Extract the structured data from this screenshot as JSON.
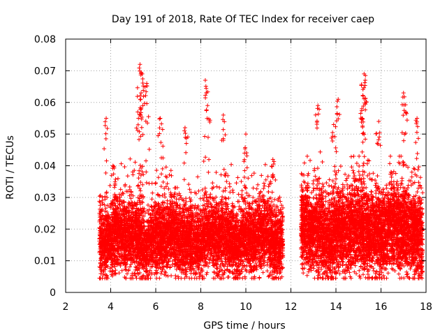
{
  "chart_data": {
    "type": "scatter",
    "title": "Day 191 of 2018, Rate Of TEC Index for receiver caep",
    "xlabel": "GPS time / hours",
    "ylabel": "ROTI / TECUs",
    "xlim": [
      2,
      18
    ],
    "ylim": [
      0,
      0.08
    ],
    "xticks": [
      "2",
      "4",
      "6",
      "8",
      "10",
      "12",
      "14",
      "16",
      "18"
    ],
    "yticks": [
      "0",
      "0.01",
      "0.02",
      "0.03",
      "0.04",
      "0.05",
      "0.06",
      "0.07",
      "0.08"
    ],
    "grid": true,
    "marker": "+",
    "series": [
      {
        "name": "ROTI",
        "color": "#ff0000",
        "segments": [
          {
            "x_range": [
              3.5,
              11.65
            ],
            "baseline": 0.017,
            "spread": 0.0055,
            "points_per_hour": 800,
            "peaks": [
              {
                "x": 3.8,
                "y": 0.055
              },
              {
                "x": 4.1,
                "y": 0.04
              },
              {
                "x": 5.3,
                "y": 0.072
              },
              {
                "x": 5.4,
                "y": 0.069
              },
              {
                "x": 5.6,
                "y": 0.066
              },
              {
                "x": 5.35,
                "y": 0.063
              },
              {
                "x": 5.2,
                "y": 0.057
              },
              {
                "x": 6.2,
                "y": 0.055
              },
              {
                "x": 7.3,
                "y": 0.052
              },
              {
                "x": 8.2,
                "y": 0.067
              },
              {
                "x": 8.3,
                "y": 0.059
              },
              {
                "x": 9.0,
                "y": 0.056
              },
              {
                "x": 10.0,
                "y": 0.05
              },
              {
                "x": 11.2,
                "y": 0.042
              }
            ]
          },
          {
            "x_range": [
              12.45,
              17.85
            ],
            "baseline": 0.019,
            "spread": 0.0065,
            "points_per_hour": 900,
            "peaks": [
              {
                "x": 13.2,
                "y": 0.059
              },
              {
                "x": 13.9,
                "y": 0.053
              },
              {
                "x": 14.1,
                "y": 0.061
              },
              {
                "x": 15.25,
                "y": 0.069
              },
              {
                "x": 15.3,
                "y": 0.067
              },
              {
                "x": 15.2,
                "y": 0.062
              },
              {
                "x": 15.15,
                "y": 0.058
              },
              {
                "x": 15.9,
                "y": 0.054
              },
              {
                "x": 17.0,
                "y": 0.063
              },
              {
                "x": 17.1,
                "y": 0.057
              },
              {
                "x": 17.6,
                "y": 0.055
              }
            ]
          }
        ]
      }
    ]
  }
}
